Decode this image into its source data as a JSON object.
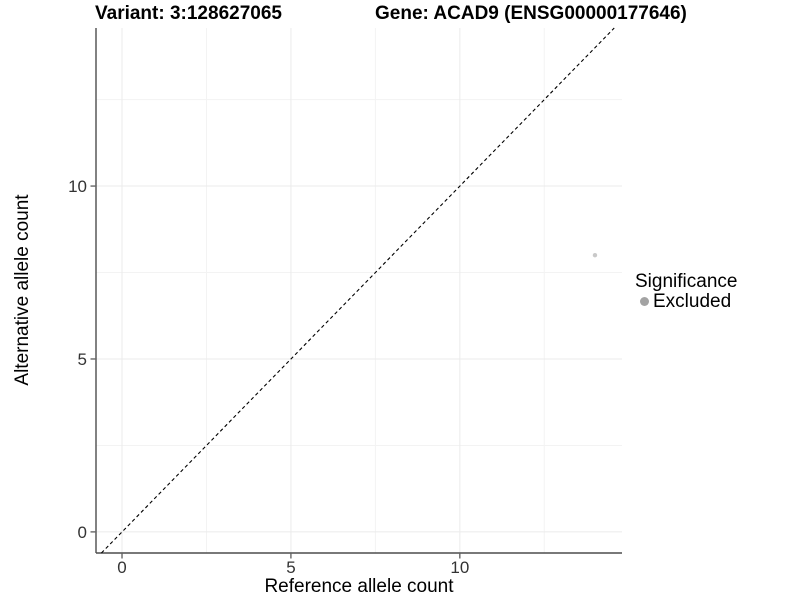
{
  "header": {
    "title_variant": "Variant: 3:128627065",
    "title_gene": "Gene: ACAD9 (ENSG00000177646)"
  },
  "chart_data": {
    "type": "scatter",
    "xlabel": "Reference allele count",
    "ylabel": "Alternative allele count",
    "xlim": [
      -0.77,
      14.8
    ],
    "ylim": [
      -0.61,
      14.57
    ],
    "xticks": [
      0,
      5,
      10
    ],
    "yticks": [
      0,
      5,
      10
    ],
    "x_minor_gridlines": [
      2.5,
      7.5,
      12.5
    ],
    "y_minor_gridlines": [
      2.5,
      7.5,
      12.5
    ],
    "grid": true,
    "points": [
      {
        "x": 14,
        "y": 8,
        "series": "Excluded"
      }
    ],
    "identity_line": {
      "slope": 1,
      "intercept": 0,
      "style": "dashed"
    },
    "legend": {
      "title": "Significance",
      "position": "right",
      "items": [
        {
          "label": "Excluded",
          "color": "#a3a3a3"
        }
      ]
    },
    "colors": {
      "point": "#c9c9c9",
      "axis": "#4d4d4d",
      "tick_text": "#333333",
      "grid_major": "#ebebeb",
      "grid_minor": "#f3f3f3",
      "identity_line": "#000000"
    }
  }
}
